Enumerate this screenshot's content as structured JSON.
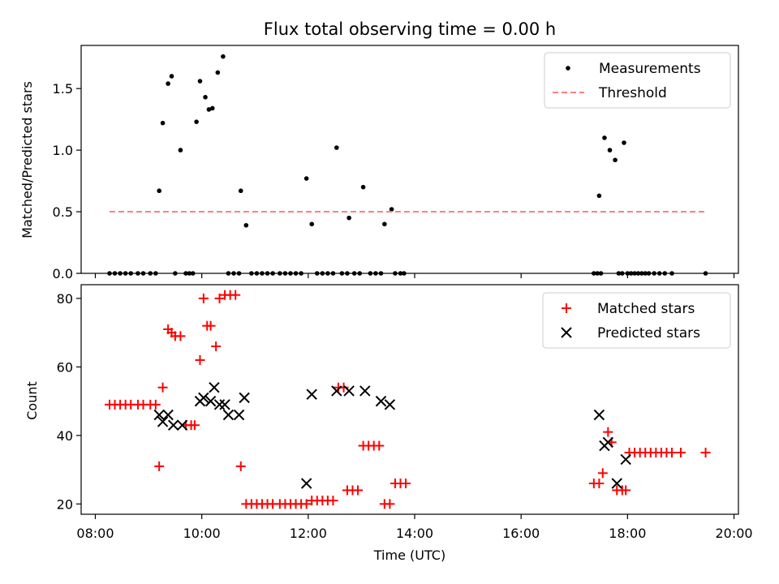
{
  "chart_data": [
    {
      "type": "scatter",
      "title": "Flux total observing time = 0.00 h",
      "xlabel": "",
      "ylabel": "Matched/Predicted stars",
      "xlim": [
        "07:44",
        "20:05"
      ],
      "ylim": [
        0,
        1.85
      ],
      "x_ticks": [
        "08:00",
        "10:00",
        "12:00",
        "14:00",
        "16:00",
        "18:00",
        "20:00"
      ],
      "y_ticks": [
        "0.0",
        "0.5",
        "1.0",
        "1.5"
      ],
      "y_tick_values": [
        0,
        0.5,
        1.0,
        1.5
      ],
      "legend_position": "top-right",
      "series": [
        {
          "name": "Measurements",
          "marker": "dot",
          "color": "#000000",
          "points": [
            [
              "08:16",
              0
            ],
            [
              "08:22",
              0
            ],
            [
              "08:28",
              0
            ],
            [
              "08:34",
              0
            ],
            [
              "08:40",
              0
            ],
            [
              "08:48",
              0
            ],
            [
              "08:54",
              0
            ],
            [
              "09:02",
              0
            ],
            [
              "09:08",
              0
            ],
            [
              "09:12",
              0.67
            ],
            [
              "09:16",
              1.22
            ],
            [
              "09:22",
              1.54
            ],
            [
              "09:26",
              1.6
            ],
            [
              "09:36",
              1.0
            ],
            [
              "09:30",
              0
            ],
            [
              "09:42",
              0
            ],
            [
              "09:46",
              0
            ],
            [
              "09:50",
              0
            ],
            [
              "09:54",
              1.23
            ],
            [
              "09:58",
              1.56
            ],
            [
              "10:04",
              1.43
            ],
            [
              "10:08",
              1.33
            ],
            [
              "10:12",
              1.34
            ],
            [
              "10:18",
              1.63
            ],
            [
              "10:24",
              1.76
            ],
            [
              "10:30",
              0
            ],
            [
              "10:36",
              0
            ],
            [
              "10:42",
              0
            ],
            [
              "10:44",
              0.67
            ],
            [
              "10:50",
              0.39
            ],
            [
              "10:56",
              0
            ],
            [
              "11:02",
              0
            ],
            [
              "11:08",
              0
            ],
            [
              "11:14",
              0
            ],
            [
              "11:20",
              0
            ],
            [
              "11:28",
              0
            ],
            [
              "11:34",
              0
            ],
            [
              "11:40",
              0
            ],
            [
              "11:46",
              0
            ],
            [
              "11:52",
              0
            ],
            [
              "11:58",
              0.77
            ],
            [
              "12:04",
              0.4
            ],
            [
              "12:10",
              0
            ],
            [
              "12:16",
              0
            ],
            [
              "12:22",
              0
            ],
            [
              "12:28",
              0
            ],
            [
              "12:32",
              1.02
            ],
            [
              "12:38",
              0
            ],
            [
              "12:44",
              0
            ],
            [
              "12:46",
              0.45
            ],
            [
              "12:52",
              0
            ],
            [
              "12:58",
              0
            ],
            [
              "13:02",
              0.7
            ],
            [
              "13:10",
              0
            ],
            [
              "13:16",
              0
            ],
            [
              "13:22",
              0
            ],
            [
              "13:26",
              0.4
            ],
            [
              "13:34",
              0.52
            ],
            [
              "13:38",
              0
            ],
            [
              "13:44",
              0
            ],
            [
              "13:48",
              0
            ],
            [
              "17:22",
              0
            ],
            [
              "17:26",
              0
            ],
            [
              "17:30",
              0
            ],
            [
              "17:28",
              0.63
            ],
            [
              "17:34",
              1.1
            ],
            [
              "17:40",
              1.0
            ],
            [
              "17:46",
              0.92
            ],
            [
              "17:56",
              1.06
            ],
            [
              "17:50",
              0
            ],
            [
              "17:54",
              0
            ],
            [
              "18:00",
              0
            ],
            [
              "18:04",
              0
            ],
            [
              "18:08",
              0
            ],
            [
              "18:12",
              0
            ],
            [
              "18:16",
              0
            ],
            [
              "18:20",
              0
            ],
            [
              "18:24",
              0
            ],
            [
              "18:30",
              0
            ],
            [
              "18:36",
              0
            ],
            [
              "18:42",
              0
            ],
            [
              "18:50",
              0
            ],
            [
              "19:28",
              0
            ]
          ]
        },
        {
          "name": "Threshold",
          "marker": "dashed-line",
          "color": "#ff7f7f",
          "points": [
            [
              "08:16",
              0.5
            ],
            [
              "19:28",
              0.5
            ]
          ]
        }
      ]
    },
    {
      "type": "scatter",
      "title": "",
      "xlabel": "Time (UTC)",
      "ylabel": "Count",
      "xlim": [
        "07:44",
        "20:05"
      ],
      "ylim": [
        17,
        84
      ],
      "x_ticks": [
        "08:00",
        "10:00",
        "12:00",
        "14:00",
        "16:00",
        "18:00",
        "20:00"
      ],
      "y_ticks": [
        "20",
        "40",
        "60",
        "80"
      ],
      "y_tick_values": [
        20,
        40,
        60,
        80
      ],
      "legend_position": "top-right",
      "series": [
        {
          "name": "Matched stars",
          "marker": "plus",
          "color": "#ff0000",
          "points": [
            [
              "08:16",
              49
            ],
            [
              "08:22",
              49
            ],
            [
              "08:28",
              49
            ],
            [
              "08:34",
              49
            ],
            [
              "08:40",
              49
            ],
            [
              "08:48",
              49
            ],
            [
              "08:54",
              49
            ],
            [
              "09:02",
              49
            ],
            [
              "09:08",
              49
            ],
            [
              "09:12",
              31
            ],
            [
              "09:16",
              54
            ],
            [
              "09:22",
              71
            ],
            [
              "09:26",
              70
            ],
            [
              "09:30",
              69
            ],
            [
              "09:36",
              69
            ],
            [
              "09:42",
              43
            ],
            [
              "09:48",
              43
            ],
            [
              "09:52",
              43
            ],
            [
              "09:58",
              62
            ],
            [
              "10:02",
              80
            ],
            [
              "10:06",
              72
            ],
            [
              "10:10",
              72
            ],
            [
              "10:16",
              66
            ],
            [
              "10:20",
              80
            ],
            [
              "10:26",
              81
            ],
            [
              "10:32",
              81
            ],
            [
              "10:38",
              81
            ],
            [
              "10:44",
              31
            ],
            [
              "10:50",
              20
            ],
            [
              "10:56",
              20
            ],
            [
              "11:02",
              20
            ],
            [
              "11:08",
              20
            ],
            [
              "11:14",
              20
            ],
            [
              "11:20",
              20
            ],
            [
              "11:28",
              20
            ],
            [
              "11:34",
              20
            ],
            [
              "11:40",
              20
            ],
            [
              "11:46",
              20
            ],
            [
              "11:52",
              20
            ],
            [
              "11:58",
              20
            ],
            [
              "12:04",
              21
            ],
            [
              "12:10",
              21
            ],
            [
              "12:16",
              21
            ],
            [
              "12:22",
              21
            ],
            [
              "12:28",
              21
            ],
            [
              "12:34",
              54
            ],
            [
              "12:40",
              54
            ],
            [
              "12:44",
              24
            ],
            [
              "12:50",
              24
            ],
            [
              "12:56",
              24
            ],
            [
              "13:02",
              37
            ],
            [
              "13:08",
              37
            ],
            [
              "13:14",
              37
            ],
            [
              "13:20",
              37
            ],
            [
              "13:26",
              20
            ],
            [
              "13:32",
              20
            ],
            [
              "13:38",
              26
            ],
            [
              "13:44",
              26
            ],
            [
              "13:50",
              26
            ],
            [
              "17:22",
              26
            ],
            [
              "17:28",
              26
            ],
            [
              "17:32",
              29
            ],
            [
              "17:38",
              41
            ],
            [
              "17:42",
              38
            ],
            [
              "17:48",
              24
            ],
            [
              "17:54",
              24
            ],
            [
              "17:58",
              24
            ],
            [
              "18:02",
              35
            ],
            [
              "18:08",
              35
            ],
            [
              "18:14",
              35
            ],
            [
              "18:20",
              35
            ],
            [
              "18:26",
              35
            ],
            [
              "18:32",
              35
            ],
            [
              "18:38",
              35
            ],
            [
              "18:44",
              35
            ],
            [
              "18:50",
              35
            ],
            [
              "19:00",
              35
            ],
            [
              "19:28",
              35
            ]
          ]
        },
        {
          "name": "Predicted stars",
          "marker": "x",
          "color": "#000000",
          "points": [
            [
              "09:12",
              46
            ],
            [
              "09:16",
              44
            ],
            [
              "09:22",
              46
            ],
            [
              "09:28",
              43
            ],
            [
              "09:38",
              43
            ],
            [
              "09:58",
              50
            ],
            [
              "10:02",
              51
            ],
            [
              "10:10",
              50
            ],
            [
              "10:14",
              54
            ],
            [
              "10:20",
              49
            ],
            [
              "10:26",
              49
            ],
            [
              "10:30",
              46
            ],
            [
              "10:42",
              46
            ],
            [
              "10:48",
              51
            ],
            [
              "11:58",
              26
            ],
            [
              "12:04",
              52
            ],
            [
              "12:32",
              53
            ],
            [
              "12:46",
              53
            ],
            [
              "13:04",
              53
            ],
            [
              "13:22",
              50
            ],
            [
              "13:32",
              49
            ],
            [
              "17:28",
              46
            ],
            [
              "17:34",
              37
            ],
            [
              "17:38",
              38
            ],
            [
              "17:48",
              26
            ],
            [
              "17:58",
              33
            ]
          ]
        }
      ]
    }
  ]
}
